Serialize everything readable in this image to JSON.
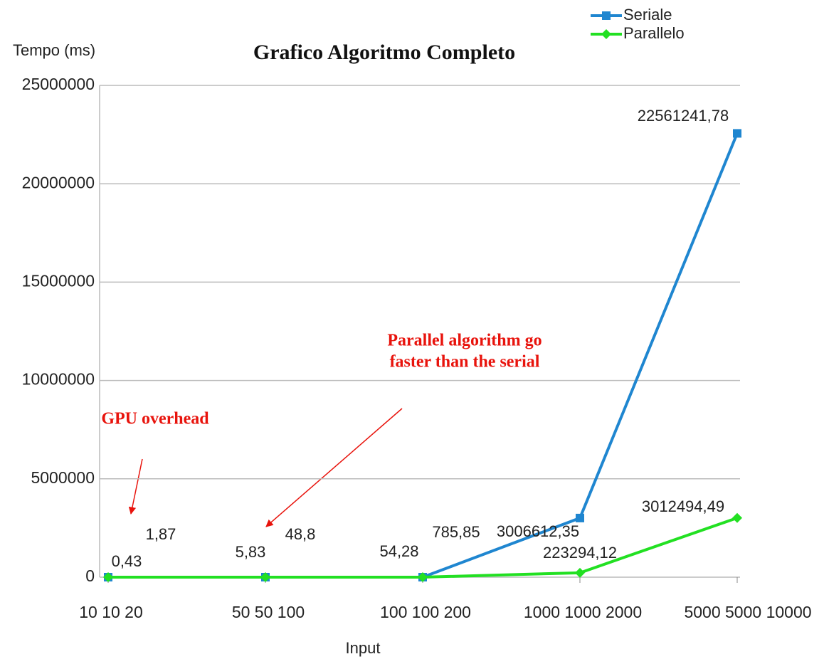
{
  "chart_data": {
    "type": "line",
    "title": "Grafico Algoritmo Completo",
    "ylabel": "Tempo (ms)",
    "xlabel": "Input",
    "categories": [
      "10 10 20",
      "50 50 100",
      "100 100 200",
      "1000 1000 2000",
      "5000 5000 10000"
    ],
    "series": [
      {
        "name": "Seriale",
        "color": "#1f86d0",
        "values": [
          0.43,
          5.83,
          54.28,
          3006612.35,
          22561241.78
        ],
        "value_labels": [
          "0,43",
          "5,83",
          "54,28",
          "3006612,35",
          "22561241,78"
        ]
      },
      {
        "name": "Parallelo",
        "color": "#22e022",
        "values": [
          1.87,
          48.8,
          785.85,
          223294.12,
          3012494.49
        ],
        "value_labels": [
          "1,87",
          "48,8",
          "785,85",
          "223294,12",
          "3012494,49"
        ]
      }
    ],
    "ylim": [
      0,
      25000000
    ],
    "yticks": [
      0,
      5000000,
      10000000,
      15000000,
      20000000,
      25000000
    ],
    "grid": true,
    "legend": "top-right",
    "annotations": [
      {
        "lines": [
          "GPU overhead"
        ]
      },
      {
        "lines": [
          "Parallel algorithm go",
          "faster than the serial"
        ]
      }
    ]
  }
}
